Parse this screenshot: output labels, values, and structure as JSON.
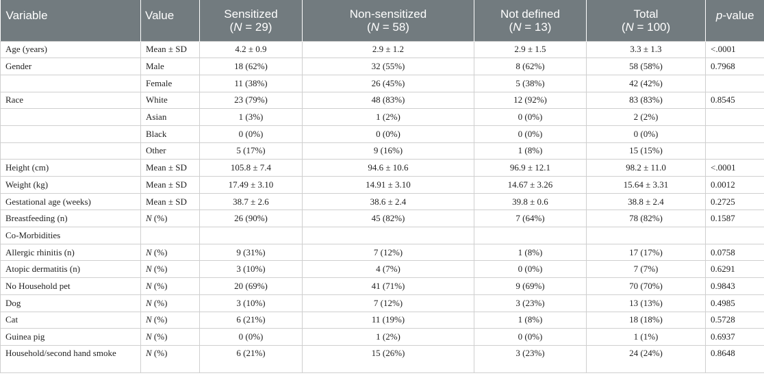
{
  "table": {
    "headers": {
      "variable": "Variable",
      "value": "Value",
      "sensitized": "Sensitized",
      "sensitized_n": "29",
      "nonsensitized": "Non-sensitized",
      "nonsensitized_n": "58",
      "notdefined": "Not defined",
      "notdefined_n": "13",
      "total": "Total",
      "total_n": "100",
      "p_italic": "p",
      "p_rest": "-value",
      "n_prefix": "N",
      "n_eq": " = "
    },
    "rows": [
      {
        "variable": "Age (years)",
        "value": "Mean ± SD",
        "sens": "4.2 ± 0.9",
        "non": "2.9 ± 1.2",
        "nd": "2.9 ± 1.5",
        "total": "3.3 ± 1.3",
        "p": "<.0001"
      },
      {
        "variable": "Gender",
        "value": "Male",
        "sens": "18 (62%)",
        "non": "32 (55%)",
        "nd": "8 (62%)",
        "total": "58 (58%)",
        "p": "0.7968"
      },
      {
        "variable": "",
        "value": "Female",
        "sens": "11 (38%)",
        "non": "26 (45%)",
        "nd": "5 (38%)",
        "total": "42 (42%)",
        "p": ""
      },
      {
        "variable": "Race",
        "value": "White",
        "sens": "23 (79%)",
        "non": "48 (83%)",
        "nd": "12 (92%)",
        "total": "83 (83%)",
        "p": "0.8545"
      },
      {
        "variable": "",
        "value": "Asian",
        "sens": "1 (3%)",
        "non": "1 (2%)",
        "nd": "0 (0%)",
        "total": "2 (2%)",
        "p": ""
      },
      {
        "variable": "",
        "value": "Black",
        "sens": "0 (0%)",
        "non": "0 (0%)",
        "nd": "0 (0%)",
        "total": "0 (0%)",
        "p": ""
      },
      {
        "variable": "",
        "value": "Other",
        "sens": "5 (17%)",
        "non": "9 (16%)",
        "nd": "1 (8%)",
        "total": "15 (15%)",
        "p": ""
      },
      {
        "variable": "Height (cm)",
        "value": "Mean ± SD",
        "sens": "105.8 ± 7.4",
        "non": "94.6 ± 10.6",
        "nd": "96.9 ± 12.1",
        "total": "98.2 ± 11.0",
        "p": "<.0001"
      },
      {
        "variable": "Weight (kg)",
        "value": "Mean ± SD",
        "sens": "17.49 ± 3.10",
        "non": "14.91 ± 3.10",
        "nd": "14.67 ± 3.26",
        "total": "15.64 ± 3.31",
        "p": "0.0012"
      },
      {
        "variable": "Gestational age (weeks)",
        "value": "Mean ± SD",
        "sens": "38.7 ± 2.6",
        "non": "38.6 ± 2.4",
        "nd": "39.8 ± 0.6",
        "total": "38.8 ± 2.4",
        "p": "0.2725"
      },
      {
        "variable": "Breastfeeding (n)",
        "value_italic": "N",
        "value_rest": " (%)",
        "sens": "26 (90%)",
        "non": "45 (82%)",
        "nd": "7 (64%)",
        "total": "78 (82%)",
        "p": "0.1587"
      },
      {
        "variable": "Co-Morbidities",
        "value": "",
        "sens": "",
        "non": "",
        "nd": "",
        "total": "",
        "p": ""
      },
      {
        "variable": "Allergic rhinitis (n)",
        "value_italic": "N",
        "value_rest": " (%)",
        "sens": "9 (31%)",
        "non": "7 (12%)",
        "nd": "1 (8%)",
        "total": "17 (17%)",
        "p": "0.0758"
      },
      {
        "variable": "Atopic dermatitis (n)",
        "value_italic": "N",
        "value_rest": " (%)",
        "sens": "3 (10%)",
        "non": "4 (7%)",
        "nd": "0 (0%)",
        "total": "7 (7%)",
        "p": "0.6291"
      },
      {
        "variable": "No Household pet",
        "value_italic": "N",
        "value_rest": " (%)",
        "sens": "20 (69%)",
        "non": "41 (71%)",
        "nd": "9 (69%)",
        "total": "70 (70%)",
        "p": "0.9843"
      },
      {
        "variable": "Dog",
        "value_italic": "N",
        "value_rest": " (%)",
        "sens": "3 (10%)",
        "non": "7 (12%)",
        "nd": "3 (23%)",
        "total": "13 (13%)",
        "p": "0.4985"
      },
      {
        "variable": "Cat",
        "value_italic": "N",
        "value_rest": " (%)",
        "sens": "6 (21%)",
        "non": "11 (19%)",
        "nd": "1 (8%)",
        "total": "18 (18%)",
        "p": "0.5728"
      },
      {
        "variable": "Guinea pig",
        "value_italic": "N",
        "value_rest": " (%)",
        "sens": "0 (0%)",
        "non": "1 (2%)",
        "nd": "0 (0%)",
        "total": "1 (1%)",
        "p": "0.6937"
      },
      {
        "variable": "Household/second hand smoke",
        "value_italic": "N",
        "value_rest": " (%)",
        "sens": "6 (21%)",
        "non": "15 (26%)",
        "nd": "3 (23%)",
        "total": "24 (24%)",
        "p": "0.8648"
      }
    ]
  }
}
